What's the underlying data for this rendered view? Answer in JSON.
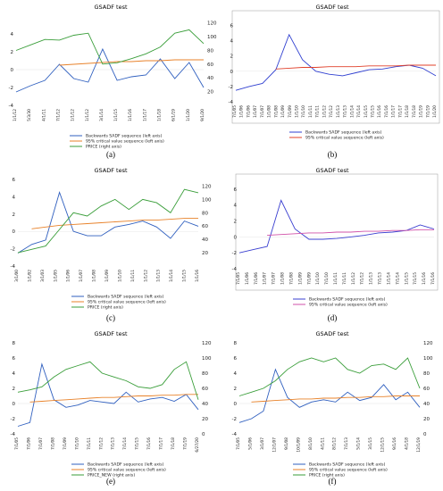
{
  "chart_data": [
    {
      "type": "line",
      "panel_label": "(a)",
      "title": "GSADF test",
      "x": [
        "1/1/12",
        "5/3/30",
        "4/1/11",
        "7/1/12",
        "1/1/12",
        "1/1/12",
        "3/1/14",
        "1/1/15",
        "1/1/16",
        "1/1/17",
        "1/1/18",
        "6/1/19",
        "1/1/20",
        "1/1/20"
      ],
      "x_ticks": [
        "1/1/12",
        "5/3/30",
        "4/1/11",
        "7/1/12",
        "1/1/12",
        "1/1/12",
        "3/1/14",
        "1/1/15",
        "1/1/16",
        "1/1/17",
        "1/1/18",
        "6/1/19",
        "1/1/20",
        "9/1/20"
      ],
      "left_axis": {
        "ticks": [
          "4",
          "2",
          "0",
          "-2",
          "-4"
        ],
        "ylim": [
          -4,
          6
        ]
      },
      "right_axis": {
        "ticks": [
          "120",
          "100",
          "80",
          "60",
          "40",
          "20"
        ],
        "ylim": [
          0,
          130
        ]
      },
      "series": [
        {
          "name": "Backwards SADF sequence (left axis)",
          "axis": "left",
          "color": "#2f5fbf",
          "values": [
            -2.5,
            -1.8,
            -1.2,
            0.6,
            -1.0,
            -1.4,
            2.3,
            -1.2,
            -0.8,
            -0.6,
            1.2,
            -1.0,
            0.8,
            -2.0
          ]
        },
        {
          "name": "95% critical value sequence (left axis)",
          "axis": "left",
          "color": "#e8822a",
          "values": [
            null,
            null,
            null,
            0.5,
            0.6,
            0.7,
            0.8,
            0.9,
            0.9,
            1.0,
            1.0,
            1.1,
            1.1,
            1.1
          ]
        },
        {
          "name": "PRICE (right axis)",
          "axis": "right",
          "color": "#3a9e3a",
          "values": [
            80,
            88,
            96,
            95,
            102,
            105,
            60,
            62,
            68,
            75,
            85,
            105,
            110,
            90
          ]
        }
      ]
    },
    {
      "type": "line",
      "panel_label": "(b)",
      "title": "GSADF test",
      "x_ticks": [
        "7/1/05",
        "1/1/06",
        "7/1/06",
        "1/1/07",
        "7/1/07",
        "1/1/08",
        "7/1/08",
        "1/1/09",
        "7/1/09",
        "1/1/10",
        "7/1/10",
        "1/1/11",
        "7/1/11",
        "1/1/12",
        "7/1/12",
        "1/1/13",
        "7/1/13",
        "1/1/14",
        "7/1/14",
        "1/1/15",
        "7/1/15",
        "1/1/16",
        "7/1/16",
        "1/1/17",
        "7/1/17",
        "1/1/18",
        "7/1/18",
        "1/1/19",
        "7/1/19",
        "1/1/20"
      ],
      "left_axis": {
        "ticks": [
          "6",
          "4",
          "2",
          "0",
          "-2",
          "-4"
        ],
        "ylim": [
          -4,
          7
        ]
      },
      "series": [
        {
          "name": "Backwards SADF sequence (left axis)",
          "axis": "left",
          "color": "#2f3fd0",
          "values": [
            -2.5,
            -2.0,
            -1.6,
            0.2,
            4.8,
            1.5,
            0.0,
            -0.4,
            -0.6,
            -0.2,
            0.2,
            0.3,
            0.6,
            0.8,
            0.4,
            -0.6
          ]
        },
        {
          "name": "95% critical value sequence (left axis)",
          "axis": "left",
          "color": "#e0402a",
          "values": [
            null,
            null,
            null,
            0.3,
            0.4,
            0.5,
            0.5,
            0.6,
            0.6,
            0.6,
            0.7,
            0.7,
            0.7,
            0.8,
            0.8,
            0.8
          ]
        }
      ]
    },
    {
      "type": "line",
      "panel_label": "(c)",
      "title": "GSADF test",
      "x_ticks": [
        "3/1/00",
        "1/1/02",
        "3/1/03",
        "1/1/05",
        "1/1/06",
        "1/1/07",
        "1/1/08",
        "1/1/09",
        "1/1/10",
        "1/1/11",
        "1/1/12",
        "1/1/13",
        "1/1/14",
        "1/1/15",
        "1/1/16"
      ],
      "left_axis": {
        "ticks": [
          "6",
          "4",
          "2",
          "0",
          "-2",
          "-4"
        ],
        "ylim": [
          -4,
          6
        ]
      },
      "right_axis": {
        "ticks": [
          "120",
          "100",
          "80",
          "60",
          "40",
          "20"
        ],
        "ylim": [
          0,
          130
        ]
      },
      "series": [
        {
          "name": "Backwards SADF sequence (left axis)",
          "axis": "left",
          "color": "#2f5fbf",
          "values": [
            -2.5,
            -1.5,
            -1.0,
            4.5,
            0.0,
            -0.5,
            -0.5,
            0.5,
            0.8,
            1.2,
            0.5,
            -0.8,
            1.2,
            0.6
          ]
        },
        {
          "name": "95% critical value sequence (left axis)",
          "axis": "left",
          "color": "#e8822a",
          "values": [
            null,
            0.3,
            0.5,
            0.7,
            0.8,
            0.9,
            1.0,
            1.1,
            1.2,
            1.3,
            1.3,
            1.4,
            1.5,
            1.5
          ]
        },
        {
          "name": "PRICE (right axis)",
          "axis": "right",
          "color": "#3a9e3a",
          "values": [
            20,
            25,
            30,
            55,
            80,
            75,
            90,
            100,
            85,
            100,
            95,
            80,
            115,
            110
          ]
        }
      ]
    },
    {
      "type": "line",
      "panel_label": "(d)",
      "title": "GSADF test",
      "x_ticks": [
        "7/1/05",
        "1/1/06",
        "7/1/06",
        "1/1/07",
        "7/1/07",
        "1/1/08",
        "7/1/08",
        "1/1/09",
        "7/1/09",
        "1/1/10",
        "7/1/10",
        "1/1/11",
        "7/1/11",
        "1/1/12",
        "7/1/12",
        "1/1/13",
        "7/1/13",
        "1/1/14",
        "7/1/14",
        "1/1/15",
        "7/1/15",
        "1/1/16",
        "7/1/16"
      ],
      "left_axis": {
        "ticks": [
          "6",
          "4",
          "2",
          "0",
          "-2",
          "-4"
        ],
        "ylim": [
          -4,
          7
        ]
      },
      "series": [
        {
          "name": "Backwards SADF sequence (left axis)",
          "axis": "left",
          "color": "#3a3fd0",
          "values": [
            -2.0,
            -1.6,
            -1.2,
            4.6,
            1.0,
            -0.3,
            -0.3,
            -0.2,
            0.0,
            0.2,
            0.5,
            0.6,
            0.8,
            1.5,
            1.0
          ]
        },
        {
          "name": "95% critical value sequence (left axis)",
          "axis": "left",
          "color": "#d050a8",
          "values": [
            null,
            null,
            0.2,
            0.3,
            0.4,
            0.5,
            0.5,
            0.6,
            0.6,
            0.7,
            0.7,
            0.8,
            0.8,
            0.9,
            0.9
          ]
        }
      ]
    },
    {
      "type": "line",
      "panel_label": "(e)",
      "title": "GSADF test",
      "x_ticks": [
        "7/1/05",
        "7/1/06",
        "7/1/07",
        "7/1/08",
        "7/1/09",
        "7/1/10",
        "7/1/11",
        "7/1/12",
        "7/1/13",
        "7/1/14",
        "7/1/15",
        "7/1/16",
        "7/1/17",
        "7/1/18",
        "7/1/19",
        "6/27/20"
      ],
      "left_axis": {
        "ticks": [
          "8",
          "6",
          "4",
          "2",
          "0",
          "-2",
          "-4"
        ],
        "ylim": [
          -4,
          8
        ]
      },
      "right_axis": {
        "ticks": [
          "120",
          "100",
          "80",
          "60",
          "40",
          "20",
          "0"
        ],
        "ylim": [
          0,
          120
        ]
      },
      "series": [
        {
          "name": "Backwards SADF sequence (left axis)",
          "axis": "left",
          "color": "#2f5fbf",
          "values": [
            -3.0,
            -2.5,
            5.2,
            0.5,
            -0.5,
            -0.2,
            0.4,
            0.2,
            0.0,
            1.5,
            0.2,
            0.6,
            0.8,
            0.3,
            1.2,
            -0.8
          ]
        },
        {
          "name": "95% critical value sequence (left axis)",
          "axis": "left",
          "color": "#e8822a",
          "values": [
            null,
            0.2,
            0.3,
            0.4,
            0.5,
            0.6,
            0.7,
            0.8,
            0.8,
            0.9,
            1.0,
            1.0,
            1.1,
            1.1,
            1.2,
            1.2
          ]
        },
        {
          "name": "PRICE_NEW (right axis)",
          "axis": "right",
          "color": "#3a9e3a",
          "values": [
            55,
            58,
            62,
            75,
            85,
            90,
            95,
            80,
            75,
            70,
            62,
            60,
            65,
            85,
            95,
            45
          ]
        }
      ]
    },
    {
      "type": "line",
      "panel_label": "(f)",
      "title": "GSADF test",
      "x_ticks": [
        "7/1/05",
        "5/1/06",
        "3/1/07",
        "12/1/07",
        "9/1/08",
        "10/1/09",
        "8/1/10",
        "4/1/11",
        "8/1/12",
        "7/1/13",
        "5/1/14",
        "3/1/15",
        "12/1/15",
        "9/1/16",
        "4/1/18",
        "12/1/19"
      ],
      "left_axis": {
        "ticks": [
          "8",
          "6",
          "4",
          "2",
          "0",
          "-2",
          "-4"
        ],
        "ylim": [
          -4,
          8
        ]
      },
      "right_axis": {
        "ticks": [
          "120",
          "100",
          "80",
          "60",
          "40",
          "20",
          "0"
        ],
        "ylim": [
          0,
          120
        ]
      },
      "series": [
        {
          "name": "Backwards SADF sequence (left axis)",
          "axis": "left",
          "color": "#2f5fbf",
          "values": [
            -2.5,
            -2.0,
            -1.0,
            4.5,
            0.8,
            -0.5,
            0.2,
            0.5,
            0.2,
            1.5,
            0.4,
            0.8,
            2.5,
            0.5,
            1.5,
            -0.5
          ]
        },
        {
          "name": "95% critical value sequence (left axis)",
          "axis": "left",
          "color": "#e8822a",
          "values": [
            null,
            0.2,
            0.3,
            0.4,
            0.5,
            0.6,
            0.6,
            0.7,
            0.7,
            0.8,
            0.8,
            0.9,
            0.9,
            1.0,
            1.0,
            1.0
          ]
        },
        {
          "name": "PRICE (right axis)",
          "axis": "right",
          "color": "#3a9e3a",
          "values": [
            50,
            55,
            60,
            70,
            85,
            95,
            100,
            95,
            100,
            85,
            80,
            90,
            92,
            85,
            100,
            60
          ]
        }
      ]
    }
  ]
}
